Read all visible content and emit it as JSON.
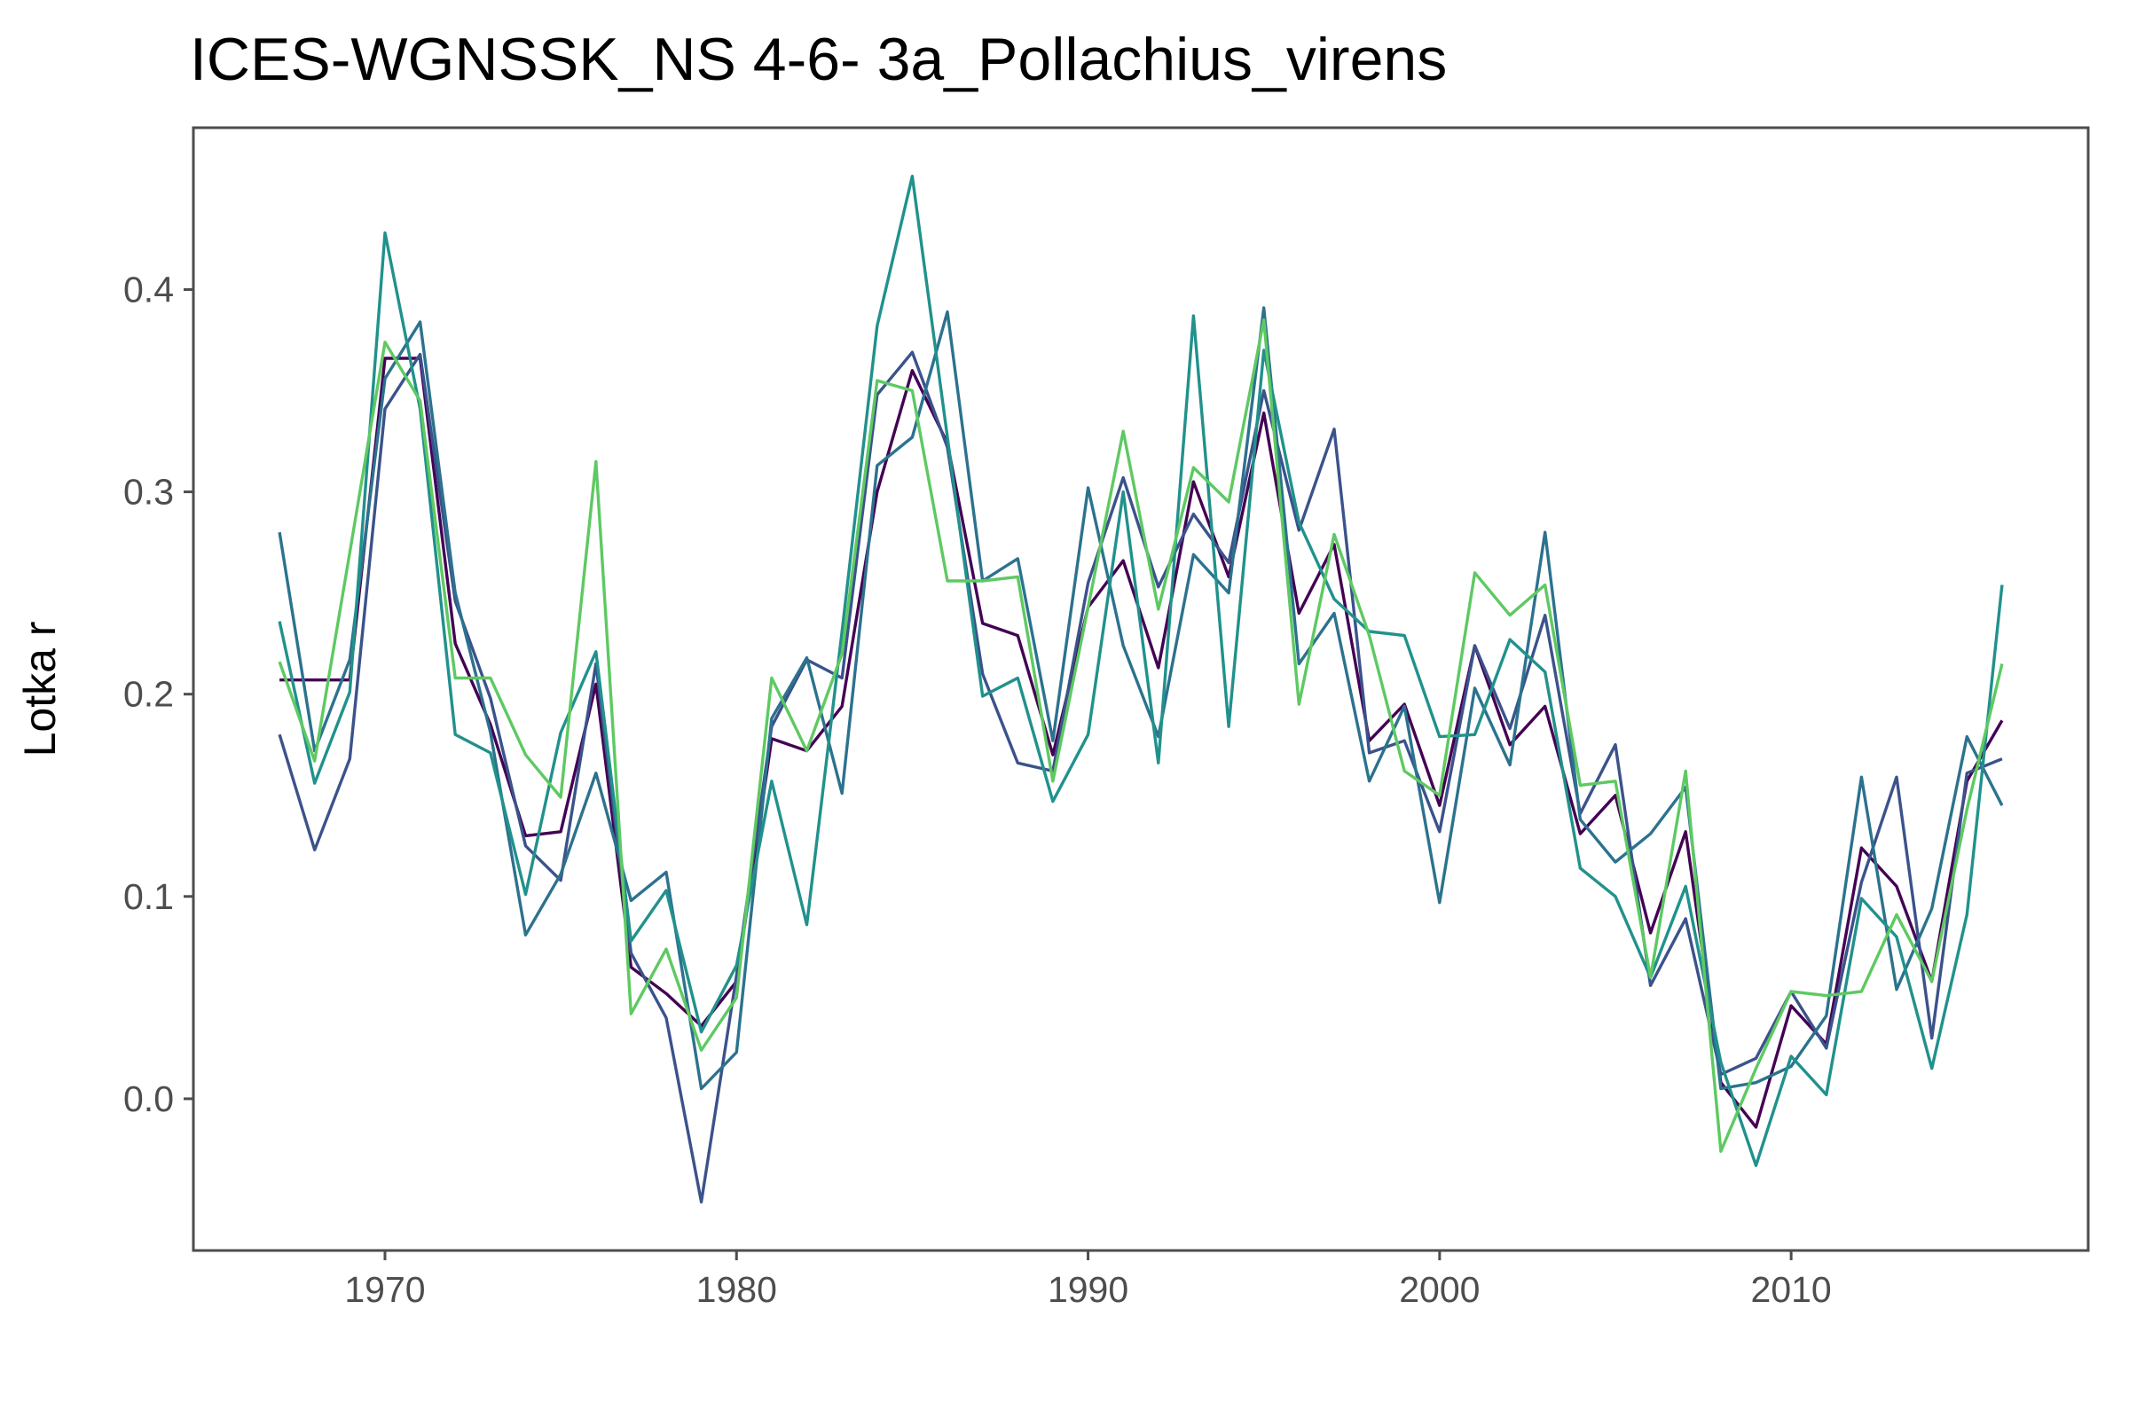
{
  "chart_data": {
    "type": "line",
    "title": "ICES-WGNSSK_NS 4-6- 3a_Pollachius_virens",
    "xlabel": "",
    "ylabel": "Lotka r",
    "xlim": [
      1964.8,
      1968.3
    ],
    "ylim": [
      -0.075,
      0.48
    ],
    "x_ticks": [
      1970,
      1980,
      1990,
      2000,
      2010
    ],
    "y_ticks": [
      0.0,
      0.1,
      0.2,
      0.3,
      0.4
    ],
    "y_tick_labels": [
      "0.0",
      "0.1",
      "0.2",
      "0.3",
      "0.4"
    ],
    "grid": false,
    "legend": "none",
    "x": [
      1967,
      1968,
      1969,
      1970,
      1971,
      1972,
      1973,
      1974,
      1975,
      1976,
      1977,
      1978,
      1979,
      1980,
      1981,
      1982,
      1983,
      1984,
      1985,
      1986,
      1987,
      1988,
      1989,
      1990,
      1991,
      1992,
      1993,
      1994,
      1995,
      1996,
      1997,
      1998,
      1999,
      2000,
      2001,
      2002,
      2003,
      2004,
      2005,
      2006,
      2007,
      2008,
      2009,
      2010,
      2011,
      2012,
      2013,
      2014,
      2015,
      2016
    ],
    "series": [
      {
        "color": "#440154",
        "values": [
          0.207,
          0.207,
          0.207,
          0.366,
          0.366,
          0.225,
          0.185,
          0.13,
          0.132,
          0.205,
          0.065,
          0.052,
          0.036,
          0.058,
          0.178,
          0.172,
          0.194,
          0.3,
          0.36,
          0.324,
          0.235,
          0.229,
          0.17,
          0.243,
          0.266,
          0.213,
          0.305,
          0.258,
          0.339,
          0.24,
          0.274,
          0.177,
          0.195,
          0.145,
          0.224,
          0.175,
          0.194,
          0.131,
          0.15,
          0.082,
          0.132,
          0.008,
          -0.014,
          0.046,
          0.027,
          0.124,
          0.105,
          0.058,
          0.157,
          0.187
        ]
      },
      {
        "color": "#3b528b",
        "values": [
          0.18,
          0.123,
          0.168,
          0.341,
          0.368,
          0.246,
          0.198,
          0.125,
          0.108,
          0.215,
          0.072,
          0.04,
          -0.051,
          0.061,
          0.184,
          0.217,
          0.208,
          0.348,
          0.369,
          0.322,
          0.21,
          0.166,
          0.162,
          0.255,
          0.307,
          0.253,
          0.289,
          0.265,
          0.35,
          0.281,
          0.331,
          0.171,
          0.177,
          0.132,
          0.224,
          0.183,
          0.239,
          0.141,
          0.175,
          0.056,
          0.089,
          0.012,
          0.02,
          0.053,
          0.025,
          0.107,
          0.159,
          0.03,
          0.161,
          0.168
        ]
      },
      {
        "color": "#2c728e",
        "values": [
          0.28,
          0.172,
          0.217,
          0.356,
          0.384,
          0.25,
          0.181,
          0.081,
          0.111,
          0.161,
          0.098,
          0.112,
          0.005,
          0.023,
          0.188,
          0.218,
          0.151,
          0.313,
          0.327,
          0.389,
          0.256,
          0.267,
          0.177,
          0.302,
          0.224,
          0.179,
          0.269,
          0.25,
          0.391,
          0.215,
          0.24,
          0.157,
          0.194,
          0.097,
          0.203,
          0.165,
          0.28,
          0.138,
          0.117,
          0.131,
          0.154,
          0.005,
          0.008,
          0.016,
          0.041,
          0.159,
          0.054,
          0.094,
          0.179,
          0.145
        ]
      },
      {
        "color": "#21918c",
        "values": [
          0.236,
          0.156,
          0.201,
          0.428,
          0.341,
          0.18,
          0.171,
          0.101,
          0.181,
          0.221,
          0.078,
          0.103,
          0.033,
          0.066,
          0.157,
          0.086,
          0.231,
          0.382,
          0.456,
          0.327,
          0.199,
          0.208,
          0.147,
          0.18,
          0.3,
          0.166,
          0.387,
          0.184,
          0.37,
          0.285,
          0.247,
          0.231,
          0.229,
          0.179,
          0.18,
          0.227,
          0.211,
          0.114,
          0.1,
          0.06,
          0.105,
          0.018,
          -0.033,
          0.021,
          0.002,
          0.099,
          0.08,
          0.015,
          0.091,
          0.254
        ]
      },
      {
        "color": "#5ec962",
        "values": [
          0.216,
          0.167,
          0.27,
          0.374,
          0.345,
          0.208,
          0.208,
          0.17,
          0.149,
          0.315,
          0.042,
          0.074,
          0.024,
          0.05,
          0.208,
          0.172,
          0.22,
          0.355,
          0.35,
          0.256,
          0.256,
          0.258,
          0.157,
          0.243,
          0.33,
          0.242,
          0.312,
          0.295,
          0.385,
          0.195,
          0.279,
          0.229,
          0.162,
          0.15,
          0.26,
          0.239,
          0.254,
          0.155,
          0.157,
          0.06,
          0.162,
          -0.026,
          0.015,
          0.053,
          0.051,
          0.053,
          0.091,
          0.058,
          0.143,
          0.215
        ]
      }
    ]
  }
}
